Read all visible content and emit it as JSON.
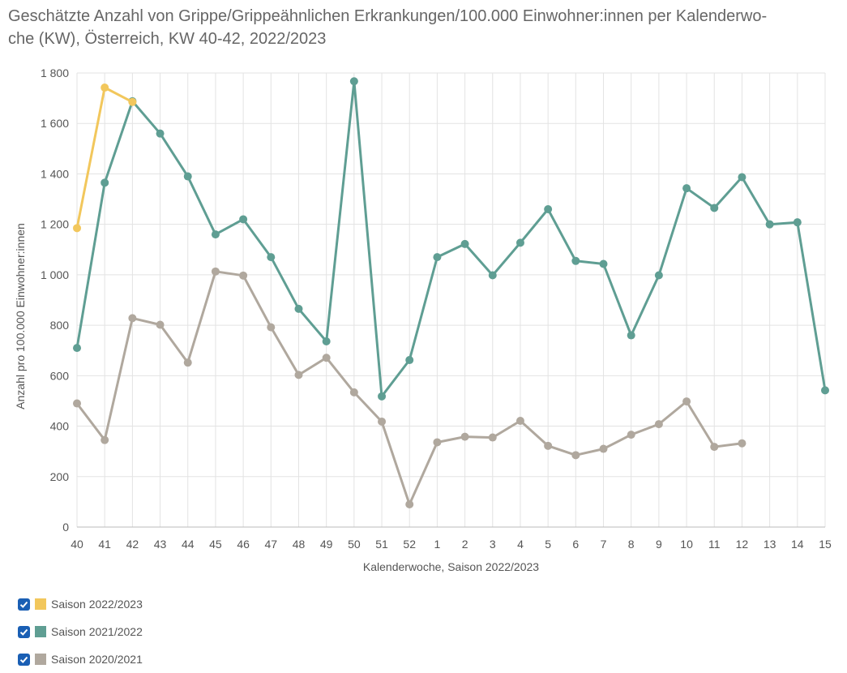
{
  "title_lines": [
    "Geschätzte Anzahl von Grippe/Grippeähnlichen Erkrankungen/100.000 Einwohner:innen per Kalenderwo-",
    "che (KW), Österreich, KW 40-42, 2022/2023"
  ],
  "chart_data": {
    "type": "line",
    "title": "Geschätzte Anzahl von Grippe/Grippeähnlichen Erkrankungen/100.000 Einwohner:innen per Kalenderwoche (KW), Österreich, KW 40-42, 2022/2023",
    "xlabel": "Kalenderwoche, Saison 2022/2023",
    "ylabel": "Anzahl pro 100.000 Einwohner:innen",
    "categories": [
      "40",
      "41",
      "42",
      "43",
      "44",
      "45",
      "46",
      "47",
      "48",
      "49",
      "50",
      "51",
      "52",
      "1",
      "2",
      "3",
      "4",
      "5",
      "6",
      "7",
      "8",
      "9",
      "10",
      "11",
      "12",
      "13",
      "14",
      "15"
    ],
    "ylim": [
      0,
      1800
    ],
    "yticks": [
      0,
      200,
      400,
      600,
      800,
      1000,
      1200,
      1400,
      1600,
      1800
    ],
    "ytick_labels": [
      "0",
      "200",
      "400",
      "600",
      "800",
      "1 000",
      "1 200",
      "1 400",
      "1 600",
      "1 800"
    ],
    "grid": true,
    "legend_position": "bottom-left",
    "series": [
      {
        "name": "Saison 2020/2021",
        "color": "#b0a89e",
        "values": [
          490,
          345,
          828,
          802,
          652,
          1013,
          997,
          792,
          603,
          671,
          534,
          418,
          90,
          336,
          358,
          355,
          421,
          322,
          285,
          310,
          366,
          408,
          498,
          318,
          332,
          null,
          null,
          null
        ]
      },
      {
        "name": "Saison 2021/2022",
        "color": "#5f9e93",
        "values": [
          710,
          1365,
          1688,
          1560,
          1390,
          1160,
          1220,
          1070,
          865,
          736,
          1767,
          518,
          662,
          1070,
          1122,
          998,
          1127,
          1260,
          1055,
          1043,
          760,
          998,
          1343,
          1265,
          1387,
          1200,
          1208,
          542
        ]
      },
      {
        "name": "Saison 2022/2023",
        "color": "#f2c75c",
        "values": [
          1185,
          1742,
          1685,
          null,
          null,
          null,
          null,
          null,
          null,
          null,
          null,
          null,
          null,
          null,
          null,
          null,
          null,
          null,
          null,
          null,
          null,
          null,
          null,
          null,
          null,
          null,
          null,
          null
        ]
      }
    ]
  },
  "legend": [
    {
      "label": "Saison 2022/2023",
      "color": "#f2c75c",
      "checked": true
    },
    {
      "label": "Saison 2021/2022",
      "color": "#5f9e93",
      "checked": true
    },
    {
      "label": "Saison 2020/2021",
      "color": "#b0a89e",
      "checked": true
    }
  ]
}
